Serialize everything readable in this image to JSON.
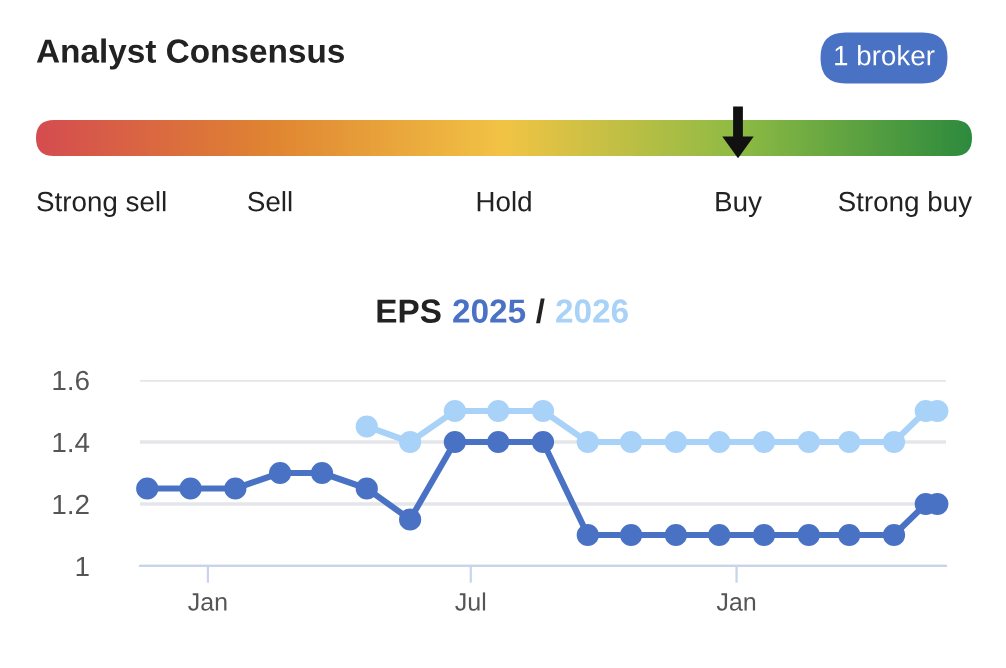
{
  "chart_data": [
    {
      "type": "other",
      "title": "Analyst Consensus",
      "annotations": [
        "1 broker"
      ],
      "categories": [
        "Strong sell",
        "Sell",
        "Hold",
        "Buy",
        "Strong buy"
      ],
      "colors": [
        "#d54d50",
        "#e08532",
        "#f2c445",
        "#8fbb44",
        "#2e8b3e"
      ]
    },
    {
      "type": "line",
      "title": "EPS",
      "annotations": [
        "/"
      ],
      "x": [
        "2023-11-20",
        "2023-12-20",
        "2024-01-20",
        "2024-02-20",
        "2024-03-20",
        "2024-04-20",
        "2024-05-20",
        "2024-06-20",
        "2024-07-20",
        "2024-08-20",
        "2024-09-20",
        "2024-10-20",
        "2024-11-20",
        "2024-12-20",
        "2025-01-20",
        "2025-02-20",
        "2025-03-20",
        "2025-04-20",
        "2025-05-12",
        "2025-05-20"
      ],
      "series": [
        {
          "name": "2025",
          "color": "#4a72c4",
          "values": [
            1.25,
            1.25,
            1.25,
            1.3,
            1.3,
            1.25,
            1.15,
            1.4,
            1.4,
            1.4,
            1.1,
            1.1,
            1.1,
            1.1,
            1.1,
            1.1,
            1.1,
            1.1,
            1.2,
            1.2
          ]
        },
        {
          "name": "2026",
          "color": "#a9d2f8",
          "values": [
            null,
            null,
            null,
            null,
            null,
            1.45,
            1.4,
            1.5,
            1.5,
            1.5,
            1.4,
            1.4,
            1.4,
            1.4,
            1.4,
            1.4,
            1.4,
            1.4,
            1.5,
            1.5
          ]
        }
      ],
      "xlim": [
        "2023-11-15",
        "2025-05-26"
      ],
      "xticks": [
        {
          "value": "2024-01-01",
          "label": "Jan"
        },
        {
          "value": "2024-07-01",
          "label": "Jul"
        },
        {
          "value": "2025-01-01",
          "label": "Jan"
        }
      ],
      "ylim": [
        1,
        1.6
      ],
      "yticks": [
        1,
        1.2,
        1.4,
        1.6
      ],
      "grid": "y",
      "legend": false,
      "marker": "circle",
      "line_style": "solid"
    }
  ]
}
